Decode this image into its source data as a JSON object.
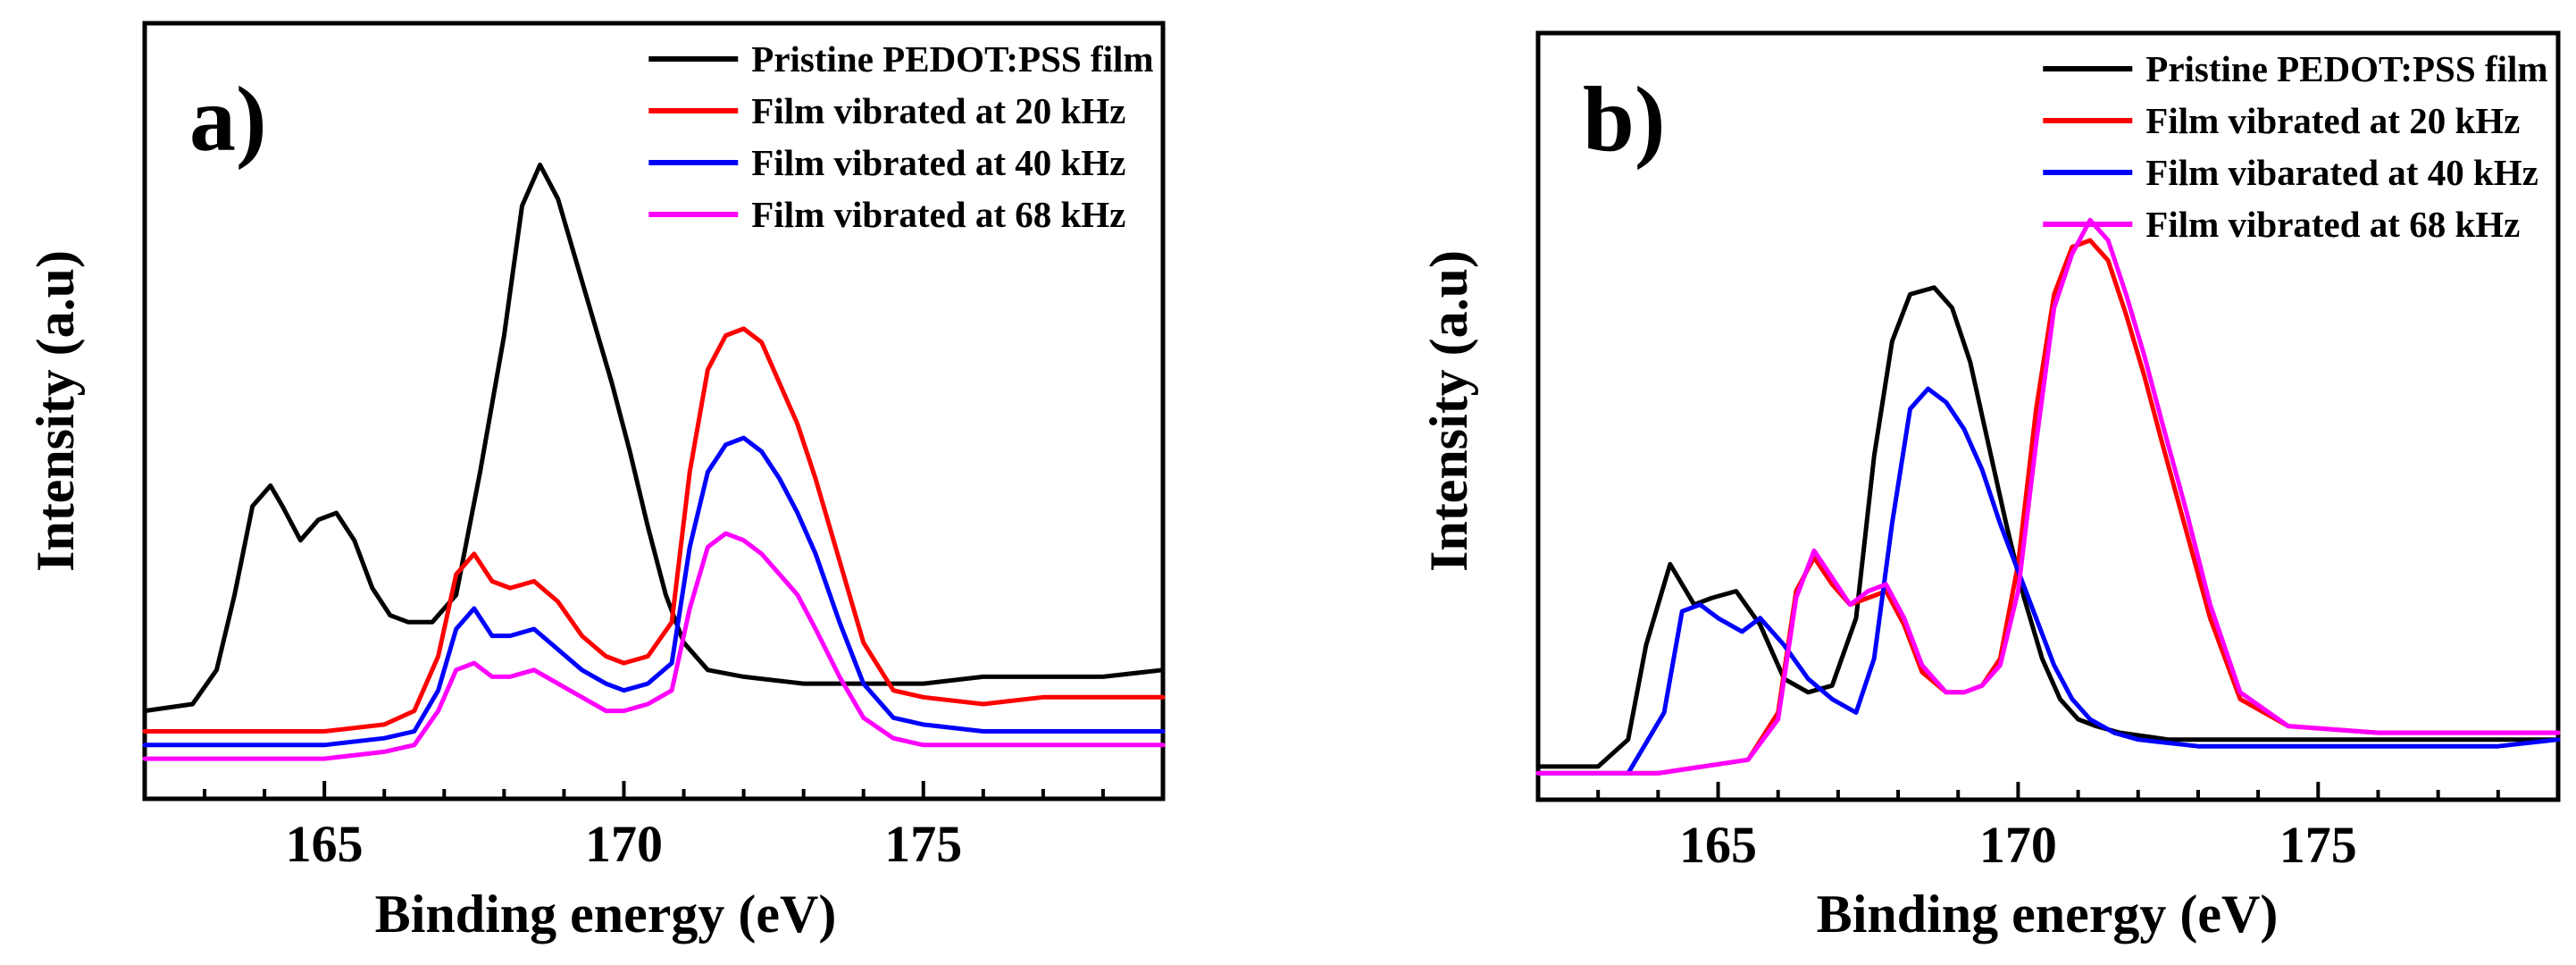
{
  "chart_data": [
    {
      "type": "line",
      "panel_label": "a)",
      "xlabel": "Binding energy (eV)",
      "ylabel": "Intensity (a.u)",
      "xlim": [
        162,
        179
      ],
      "ylim": [
        0,
        100
      ],
      "x_ticks": [
        165,
        170,
        175
      ],
      "x_tick_labels": [
        "165",
        "170",
        "175"
      ],
      "y_ticks_shown": false,
      "legend_position": "top-right",
      "series": [
        {
          "name": "Pristine PEDOT:PSS film",
          "color": "#000000",
          "x": [
            162.0,
            162.8,
            163.2,
            163.5,
            163.8,
            164.1,
            164.3,
            164.6,
            164.9,
            165.2,
            165.5,
            165.8,
            166.1,
            166.4,
            166.8,
            167.2,
            167.6,
            168.0,
            168.3,
            168.6,
            168.9,
            169.2,
            169.5,
            169.8,
            170.1,
            170.4,
            170.7,
            171.0,
            171.4,
            172.0,
            173.0,
            174.0,
            175.0,
            176.0,
            177.0,
            178.0,
            179.0
          ],
          "y": [
            10,
            11,
            16,
            27,
            40,
            43,
            40,
            35,
            38,
            39,
            35,
            28,
            24,
            23,
            23,
            27,
            45,
            65,
            84,
            90,
            85,
            76,
            67,
            58,
            48,
            37,
            27,
            20,
            16,
            15,
            14,
            14,
            14,
            15,
            15,
            15,
            16
          ]
        },
        {
          "name": "Film vibrated at 20 kHz",
          "color": "#ff0000",
          "x": [
            162.0,
            163.0,
            164.0,
            165.0,
            166.0,
            166.5,
            166.9,
            167.2,
            167.5,
            167.8,
            168.1,
            168.5,
            168.9,
            169.3,
            169.7,
            170.0,
            170.4,
            170.8,
            171.1,
            171.4,
            171.7,
            172.0,
            172.3,
            172.6,
            172.9,
            173.2,
            173.6,
            174.0,
            174.5,
            175.0,
            176.0,
            177.0,
            178.0,
            179.0
          ],
          "y": [
            7,
            7,
            7,
            7,
            8,
            10,
            18,
            30,
            33,
            29,
            28,
            29,
            26,
            21,
            18,
            17,
            18,
            23,
            45,
            60,
            65,
            66,
            64,
            58,
            52,
            44,
            32,
            20,
            13,
            12,
            11,
            12,
            12,
            12
          ]
        },
        {
          "name": "Film vibrated at 40 kHz",
          "color": "#0000ff",
          "x": [
            162.0,
            163.0,
            164.0,
            165.0,
            166.0,
            166.5,
            166.9,
            167.2,
            167.5,
            167.8,
            168.1,
            168.5,
            168.9,
            169.3,
            169.7,
            170.0,
            170.4,
            170.8,
            171.1,
            171.4,
            171.7,
            172.0,
            172.3,
            172.6,
            172.9,
            173.2,
            173.6,
            174.0,
            174.5,
            175.0,
            176.0,
            177.0,
            178.0,
            179.0
          ],
          "y": [
            5,
            5,
            5,
            5,
            6,
            7,
            13,
            22,
            25,
            21,
            21,
            22,
            19,
            16,
            14,
            13,
            14,
            17,
            34,
            45,
            49,
            50,
            48,
            44,
            39,
            33,
            23,
            14,
            9,
            8,
            7,
            7,
            7,
            7
          ]
        },
        {
          "name": "Film vibrated at 68 kHz",
          "color": "#ff00ff",
          "x": [
            162.0,
            163.0,
            164.0,
            165.0,
            166.0,
            166.5,
            166.9,
            167.2,
            167.5,
            167.8,
            168.1,
            168.5,
            168.9,
            169.3,
            169.7,
            170.0,
            170.4,
            170.8,
            171.1,
            171.4,
            171.7,
            172.0,
            172.3,
            172.6,
            172.9,
            173.2,
            173.6,
            174.0,
            174.5,
            175.0,
            176.0,
            177.0,
            178.0,
            179.0
          ],
          "y": [
            3,
            3,
            3,
            3,
            4,
            5,
            10,
            16,
            17,
            15,
            15,
            16,
            14,
            12,
            10,
            10,
            11,
            13,
            25,
            34,
            36,
            35,
            33,
            30,
            27,
            22,
            15,
            9,
            6,
            5,
            5,
            5,
            5,
            5
          ]
        }
      ]
    },
    {
      "type": "line",
      "panel_label": "b)",
      "xlabel": "Binding energy (eV)",
      "ylabel": "Intensity (a.u)",
      "xlim": [
        162,
        179
      ],
      "ylim": [
        0,
        100
      ],
      "x_ticks": [
        165,
        170,
        175
      ],
      "x_tick_labels": [
        "165",
        "170",
        "175"
      ],
      "y_ticks_shown": false,
      "legend_position": "top-right",
      "series": [
        {
          "name": "Pristine PEDOT:PSS film",
          "color": "#000000",
          "x": [
            162.0,
            163.0,
            163.5,
            163.8,
            164.2,
            164.6,
            164.9,
            165.3,
            165.7,
            166.1,
            166.5,
            166.9,
            167.3,
            167.6,
            167.9,
            168.2,
            168.6,
            168.9,
            169.2,
            169.5,
            169.8,
            170.1,
            170.4,
            170.7,
            171.0,
            171.3,
            171.7,
            172.5,
            174.0,
            176.0,
            178.0,
            179.0
          ],
          "y": [
            2,
            2,
            6,
            20,
            32,
            26,
            27,
            28,
            23,
            15,
            13,
            14,
            24,
            48,
            65,
            72,
            73,
            70,
            62,
            50,
            38,
            27,
            18,
            12,
            9,
            8,
            7,
            6,
            6,
            6,
            6,
            6
          ]
        },
        {
          "name": "Film vibrated at 20 kHz",
          "color": "#ff0000",
          "x": [
            162.0,
            164.0,
            165.5,
            166.0,
            166.3,
            166.6,
            166.9,
            167.2,
            167.5,
            167.8,
            168.1,
            168.4,
            168.8,
            169.1,
            169.4,
            169.7,
            170.0,
            170.3,
            170.6,
            170.9,
            171.2,
            171.5,
            171.8,
            172.1,
            172.4,
            172.8,
            173.2,
            173.7,
            174.5,
            176.0,
            178.0,
            179.0
          ],
          "y": [
            1,
            1,
            3,
            10,
            28,
            33,
            29,
            26,
            27,
            28,
            23,
            16,
            13,
            13,
            14,
            18,
            32,
            55,
            72,
            79,
            80,
            77,
            69,
            60,
            50,
            37,
            24,
            12,
            8,
            7,
            7,
            7
          ]
        },
        {
          "name": "Film vibarated at 40 kHz",
          "color": "#0000ff",
          "x": [
            162.0,
            163.5,
            164.1,
            164.4,
            164.7,
            165.0,
            165.4,
            165.7,
            166.1,
            166.5,
            166.9,
            167.3,
            167.6,
            167.9,
            168.2,
            168.5,
            168.8,
            169.1,
            169.4,
            169.7,
            170.0,
            170.3,
            170.6,
            170.9,
            171.2,
            171.6,
            172.0,
            173.0,
            174.5,
            176.0,
            178.0,
            179.0
          ],
          "y": [
            1,
            1,
            10,
            25,
            26,
            24,
            22,
            24,
            20,
            15,
            12,
            10,
            18,
            38,
            55,
            58,
            56,
            52,
            46,
            38,
            31,
            24,
            17,
            12,
            9,
            7,
            6,
            5,
            5,
            5,
            5,
            6
          ]
        },
        {
          "name": "Film vibrated at 68 kHz",
          "color": "#ff00ff",
          "x": [
            162.0,
            164.0,
            165.5,
            166.0,
            166.3,
            166.6,
            166.9,
            167.2,
            167.5,
            167.8,
            168.1,
            168.4,
            168.8,
            169.1,
            169.4,
            169.7,
            170.0,
            170.3,
            170.6,
            170.9,
            171.2,
            171.5,
            171.8,
            172.1,
            172.4,
            172.8,
            173.2,
            173.7,
            174.5,
            176.0,
            178.0,
            179.0
          ],
          "y": [
            1,
            1,
            3,
            9,
            27,
            34,
            30,
            26,
            28,
            29,
            24,
            17,
            13,
            13,
            14,
            17,
            28,
            50,
            70,
            78,
            83,
            80,
            72,
            63,
            53,
            40,
            26,
            13,
            8,
            7,
            7,
            7
          ]
        }
      ]
    }
  ]
}
